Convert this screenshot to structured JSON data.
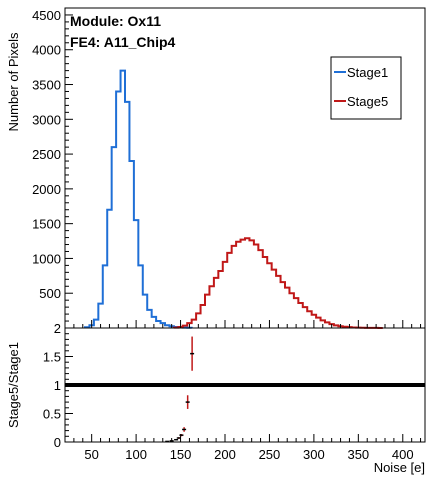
{
  "chart_data": [
    {
      "type": "line",
      "panel": "upper",
      "annotations": [
        "Module: Ox11",
        "FE4: A11_Chip4"
      ],
      "ylabel": "Number of Pixels",
      "xlim": [
        20,
        425
      ],
      "ylim": [
        0,
        4600
      ],
      "yticks": [
        500,
        1000,
        1500,
        2000,
        2500,
        3000,
        3500,
        4000,
        4500
      ],
      "ytick_labels": [
        "500",
        "1000",
        "1500",
        "2000",
        "2500",
        "3000",
        "3500",
        "4000",
        "4500"
      ],
      "lower_edge_label": "2",
      "legend": {
        "placement": "top-right",
        "entries": [
          "Stage1",
          "Stage5"
        ]
      },
      "series": [
        {
          "name": "Stage1",
          "color": "#1f6fd6",
          "bin_width": 5,
          "x": [
            45,
            50,
            55,
            60,
            65,
            70,
            75,
            80,
            85,
            90,
            95,
            100,
            105,
            110,
            115,
            120,
            125,
            130,
            135,
            140,
            145,
            150,
            155,
            160
          ],
          "values": [
            10,
            40,
            120,
            350,
            900,
            1700,
            2600,
            3400,
            3700,
            3250,
            2400,
            1550,
            900,
            480,
            260,
            160,
            100,
            70,
            40,
            25,
            15,
            8,
            5,
            3
          ]
        },
        {
          "name": "Stage5",
          "color": "#c01818",
          "bin_width": 5,
          "x": [
            145,
            150,
            155,
            160,
            165,
            170,
            175,
            180,
            185,
            190,
            195,
            200,
            205,
            210,
            215,
            220,
            225,
            230,
            235,
            240,
            245,
            250,
            255,
            260,
            265,
            270,
            275,
            280,
            285,
            290,
            295,
            300,
            305,
            310,
            315,
            320,
            325,
            330,
            335,
            340,
            345,
            350,
            355,
            360,
            365,
            370,
            375
          ],
          "values": [
            5,
            15,
            35,
            70,
            120,
            210,
            330,
            480,
            600,
            720,
            820,
            950,
            1080,
            1180,
            1240,
            1270,
            1290,
            1260,
            1200,
            1120,
            1020,
            930,
            840,
            750,
            660,
            580,
            500,
            430,
            360,
            300,
            240,
            190,
            150,
            110,
            80,
            55,
            38,
            26,
            18,
            12,
            8,
            5,
            3,
            2,
            1,
            1,
            0
          ]
        }
      ]
    },
    {
      "type": "scatter",
      "panel": "ratio",
      "ylabel": "Stage5/Stage1",
      "xlabel": "Noise [e]",
      "xlim": [
        20,
        425
      ],
      "ylim": [
        0,
        2
      ],
      "yticks": [
        0,
        0.5,
        1,
        1.5
      ],
      "ytick_labels": [
        "0",
        "0.5",
        "1",
        "1.5"
      ],
      "xticks": [
        50,
        100,
        150,
        200,
        250,
        300,
        350,
        400
      ],
      "xtick_labels": [
        "50",
        "100",
        "150",
        "200",
        "250",
        "300",
        "350",
        "400"
      ],
      "reference_line": 1,
      "points": [
        {
          "x": 135,
          "y": 0.01,
          "err": 0.005
        },
        {
          "x": 140,
          "y": 0.02,
          "err": 0.008
        },
        {
          "x": 145,
          "y": 0.04,
          "err": 0.01
        },
        {
          "x": 148,
          "y": 0.07,
          "err": 0.015
        },
        {
          "x": 151,
          "y": 0.12,
          "err": 0.02
        },
        {
          "x": 154,
          "y": 0.22,
          "err": 0.04
        },
        {
          "x": 158,
          "y": 0.7,
          "err": 0.12
        },
        {
          "x": 163,
          "y": 1.55,
          "err": 0.3
        }
      ]
    }
  ]
}
